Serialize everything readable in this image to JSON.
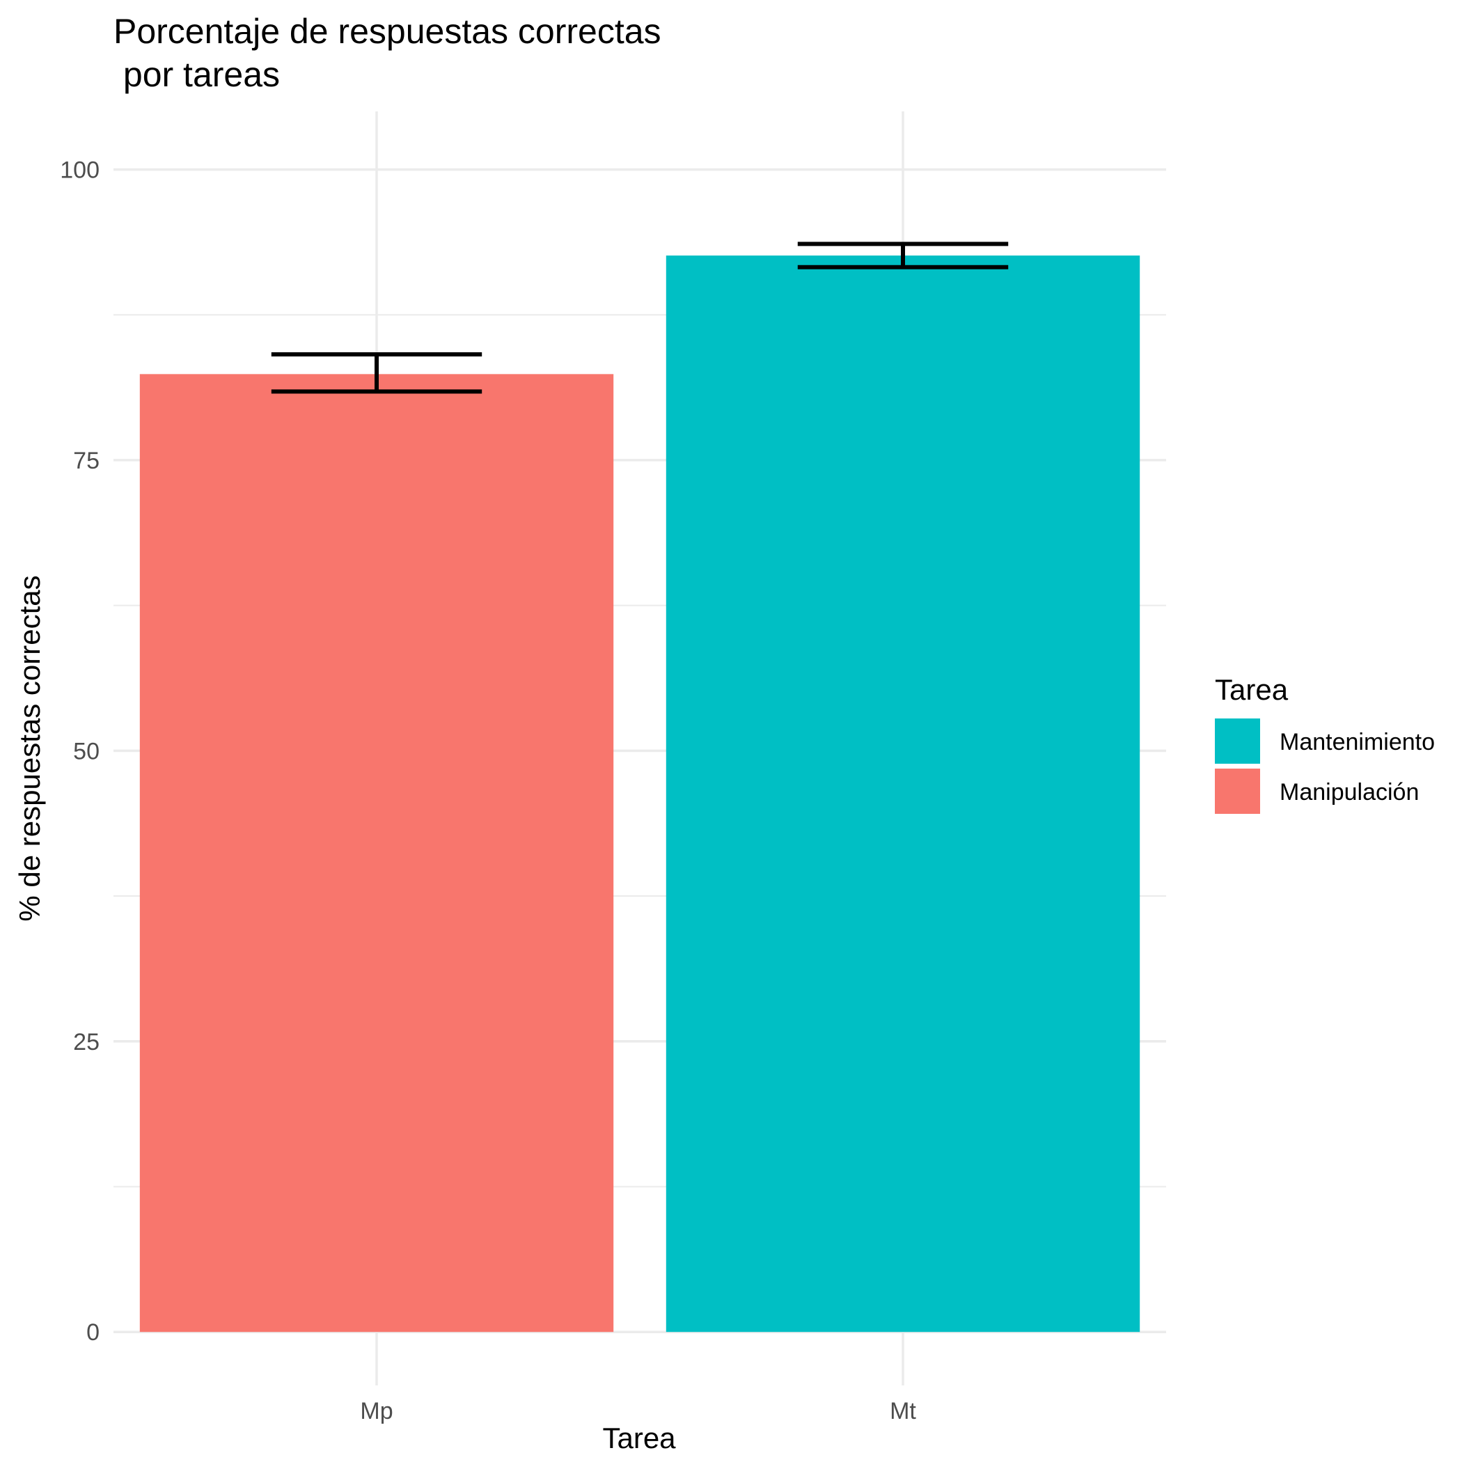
{
  "chart_data": {
    "type": "bar",
    "title_line1": "Porcentaje de respuestas correctas",
    "title_line2": " por tareas",
    "xlabel": "Tarea",
    "ylabel": "% de respuestas correctas",
    "categories": [
      "Mp",
      "Mt"
    ],
    "values": [
      82.4,
      92.6
    ],
    "error_low": [
      80.9,
      91.6
    ],
    "error_high": [
      84.1,
      93.6
    ],
    "bar_colors": [
      "#F8766D",
      "#00BFC4"
    ],
    "ylim": [
      -4.6,
      105
    ],
    "yticks": [
      0,
      25,
      50,
      75,
      100
    ],
    "yticks_labels": [
      "0",
      "25",
      "50",
      "75",
      "100"
    ],
    "grid": true,
    "legend": {
      "title": "Tarea",
      "placement": "right",
      "items": [
        {
          "label": "Mantenimiento",
          "color": "#00BFC4"
        },
        {
          "label": "Manipulación",
          "color": "#F8766D"
        }
      ]
    }
  }
}
